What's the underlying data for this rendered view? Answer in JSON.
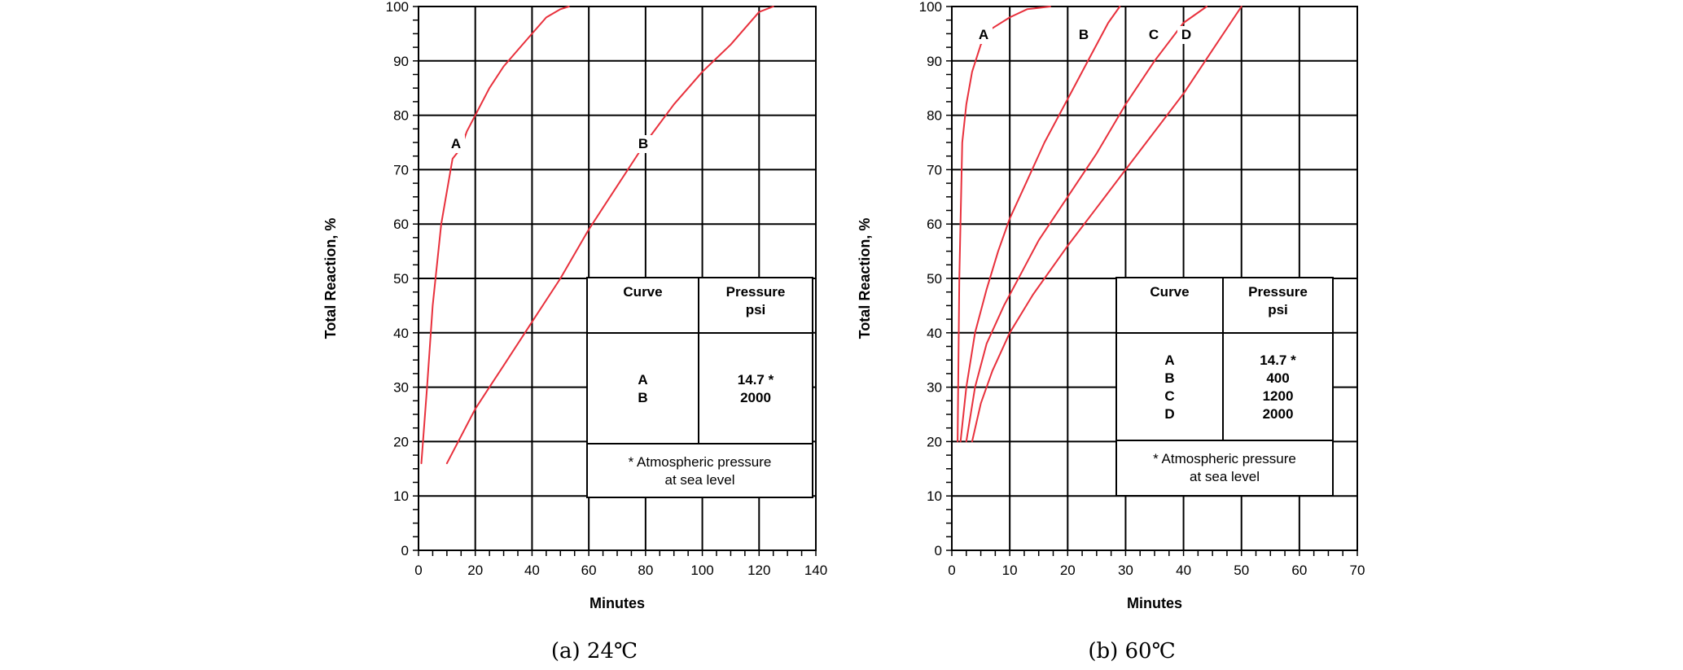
{
  "chart_data": [
    {
      "type": "line",
      "caption": "(a) 24℃",
      "xlabel": "Minutes",
      "ylabel": "Total Reaction, %",
      "xlim": [
        0,
        140
      ],
      "ylim": [
        0,
        100
      ],
      "xticks": [
        "0",
        "20",
        "40",
        "60",
        "80",
        "100",
        "120",
        "140"
      ],
      "yticks": [
        "0",
        "10",
        "20",
        "30",
        "40",
        "50",
        "60",
        "70",
        "80",
        "90",
        "100"
      ],
      "grid": true,
      "series": [
        {
          "name": "A",
          "x": [
            1,
            3,
            5,
            8,
            12,
            15,
            17,
            20,
            25,
            30,
            35,
            40,
            45,
            50,
            53
          ],
          "y": [
            16,
            30,
            45,
            60,
            72,
            74,
            77,
            80,
            85,
            89,
            92,
            95,
            98,
            99.5,
            100
          ]
        },
        {
          "name": "B",
          "x": [
            10,
            15,
            20,
            25,
            30,
            35,
            40,
            50,
            60,
            70,
            80,
            90,
            100,
            110,
            120,
            125
          ],
          "y": [
            16,
            21,
            26,
            30,
            34,
            38,
            42,
            50,
            59,
            67,
            75,
            82,
            88,
            93,
            99,
            100
          ]
        }
      ],
      "legend": {
        "header": [
          "Curve",
          "Pressure\npsi"
        ],
        "rows": [
          [
            "A",
            "14.7 *"
          ],
          [
            "B",
            "2000"
          ]
        ],
        "note": "* Atmospheric pressure\nat sea level"
      }
    },
    {
      "type": "line",
      "caption": "(b) 60℃",
      "xlabel": "Minutes",
      "ylabel": "Total Reaction, %",
      "xlim": [
        0,
        70
      ],
      "ylim": [
        0,
        100
      ],
      "xticks": [
        "0",
        "10",
        "20",
        "30",
        "40",
        "50",
        "60",
        "70"
      ],
      "yticks": [
        "0",
        "10",
        "20",
        "30",
        "40",
        "50",
        "60",
        "70",
        "80",
        "90",
        "100"
      ],
      "grid": true,
      "series": [
        {
          "name": "A",
          "x": [
            1,
            1.3,
            1.8,
            2.5,
            3.5,
            5,
            7,
            10,
            13,
            17
          ],
          "y": [
            20,
            50,
            75,
            82,
            88,
            93,
            96,
            98,
            99.5,
            100
          ]
        },
        {
          "name": "B",
          "x": [
            1.5,
            2.5,
            4,
            6,
            8,
            10,
            13,
            16,
            20,
            24,
            27,
            29
          ],
          "y": [
            20,
            30,
            40,
            48,
            55,
            61,
            68,
            75,
            83,
            91,
            97,
            100
          ]
        },
        {
          "name": "C",
          "x": [
            2.5,
            4,
            6,
            9,
            12,
            15,
            20,
            25,
            30,
            35,
            40,
            44
          ],
          "y": [
            20,
            30,
            38,
            45,
            51,
            57,
            65,
            73,
            82,
            90,
            97,
            100
          ]
        },
        {
          "name": "D",
          "x": [
            3.5,
            5,
            7,
            10,
            14,
            20,
            25,
            30,
            35,
            40,
            45,
            50
          ],
          "y": [
            20,
            27,
            33,
            40,
            47,
            56,
            63,
            70,
            77,
            84,
            92,
            100
          ]
        }
      ],
      "legend": {
        "header": [
          "Curve",
          "Pressure\npsi"
        ],
        "rows": [
          [
            "A",
            "14.7 *"
          ],
          [
            "B",
            "400"
          ],
          [
            "C",
            "1200"
          ],
          [
            "D",
            "2000"
          ]
        ],
        "note": "* Atmospheric pressure\nat sea level"
      }
    }
  ]
}
